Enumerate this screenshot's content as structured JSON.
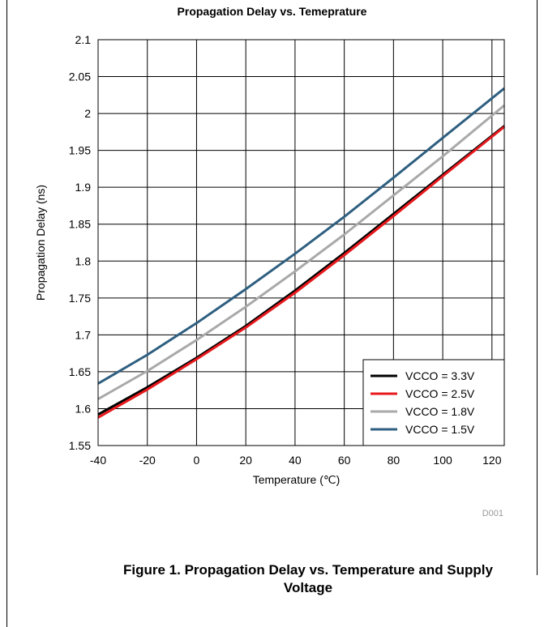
{
  "chart_data": {
    "type": "line",
    "title": "Propagation Delay vs. Temeprature",
    "xlabel": "Temperature (℃)",
    "ylabel": "Propagation Delay (ns)",
    "xlim": [
      -40,
      125
    ],
    "ylim": [
      1.55,
      2.1
    ],
    "x_ticks": [
      -40,
      -20,
      0,
      20,
      40,
      60,
      80,
      100,
      120
    ],
    "x_tick_labels": [
      "-40",
      "-20",
      "0",
      "20",
      "40",
      "60",
      "80",
      "100",
      "120"
    ],
    "y_ticks": [
      1.55,
      1.6,
      1.65,
      1.7,
      1.75,
      1.8,
      1.85,
      1.9,
      1.95,
      2.0,
      2.05,
      2.1
    ],
    "y_tick_labels": [
      "1.55",
      "1.6",
      "1.65",
      "1.7",
      "1.75",
      "1.8",
      "1.85",
      "1.9",
      "1.95",
      "2",
      "2.05",
      "2.1"
    ],
    "grid": true,
    "legend": "bottom-right",
    "plot_id": "D001",
    "x": [
      -40,
      -20,
      0,
      20,
      40,
      60,
      80,
      100,
      125
    ],
    "series": [
      {
        "name": "VCCO = 3.3V",
        "color": "#000000",
        "values": [
          1.592,
          1.629,
          1.669,
          1.712,
          1.76,
          1.811,
          1.864,
          1.917,
          1.983
        ]
      },
      {
        "name": "VCCO = 2.5V",
        "color": "#e8191d",
        "values": [
          1.588,
          1.626,
          1.667,
          1.71,
          1.757,
          1.808,
          1.861,
          1.915,
          1.982
        ]
      },
      {
        "name": "VCCO = 1.8V",
        "color": "#a9a9a9",
        "values": [
          1.613,
          1.651,
          1.693,
          1.738,
          1.786,
          1.836,
          1.889,
          1.942,
          2.011
        ]
      },
      {
        "name": "VCCO = 1.5V",
        "color": "#2e5f80",
        "values": [
          1.634,
          1.673,
          1.716,
          1.762,
          1.81,
          1.86,
          1.913,
          1.967,
          2.034
        ]
      }
    ]
  },
  "caption": {
    "line1": "Figure 1. Propagation Delay vs. Temperature and Supply",
    "line2": "Voltage"
  }
}
